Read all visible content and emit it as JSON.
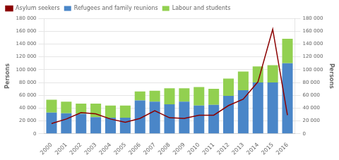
{
  "chart_data": {
    "type": "bar",
    "categories": [
      "2000",
      "2001",
      "2002",
      "2003",
      "2004",
      "2005",
      "2006",
      "2007",
      "2008",
      "2009",
      "2010",
      "2011",
      "2012",
      "2013",
      "2014",
      "2015",
      "2016"
    ],
    "series": [
      {
        "name": "Refugees and family reunions",
        "color": "#4a86c8",
        "values": [
          33000,
          32000,
          31000,
          26000,
          25000,
          25000,
          52000,
          50000,
          46000,
          50000,
          44000,
          45000,
          59000,
          68000,
          80000,
          80000,
          110000
        ]
      },
      {
        "name": "Labour and students",
        "color": "#92d050",
        "values": [
          20000,
          18000,
          16000,
          21000,
          19000,
          19000,
          14000,
          17000,
          25000,
          21000,
          29000,
          25000,
          27000,
          29000,
          25000,
          27000,
          38000
        ]
      },
      {
        "name": "Asylum seekers",
        "color": "#8b0000",
        "type": "line",
        "axis": "y2",
        "values": [
          16000,
          23000,
          33000,
          31000,
          23000,
          18000,
          24000,
          36000,
          25000,
          24000,
          29000,
          29000,
          44000,
          54000,
          81000,
          163000,
          29000
        ]
      }
    ],
    "stacked": true,
    "ylabel": "Persons",
    "y2label": "Persons",
    "ylim": [
      0,
      180000
    ],
    "yticks": [
      0,
      {
        "value": 20000,
        "label": "20 000"
      },
      {
        "value": 40000,
        "label": "40 000"
      },
      {
        "value": 60000,
        "label": "60 000"
      },
      {
        "value": 80000,
        "label": "80 000"
      },
      {
        "value": 100000,
        "label": "100 000"
      },
      {
        "value": 120000,
        "label": "120 000"
      },
      {
        "value": 140000,
        "label": "140 000"
      },
      {
        "value": 160000,
        "label": "160 000"
      },
      {
        "value": 180000,
        "label": "180 000"
      }
    ],
    "y2lim": [
      0,
      180000
    ],
    "y2ticks": [
      0,
      {
        "value": 20000,
        "label": "20 000"
      },
      {
        "value": 40000,
        "label": "40 000"
      },
      {
        "value": 60000,
        "label": "60 000"
      },
      {
        "value": 80000,
        "label": "80 000"
      },
      {
        "value": 100000,
        "label": "100 000"
      },
      {
        "value": 120000,
        "label": "120 000"
      },
      {
        "value": 140000,
        "label": "140 000"
      },
      {
        "value": 160000,
        "label": "160 000"
      },
      {
        "value": 180000,
        "label": "180 000"
      }
    ],
    "grid": true,
    "legend": "upper left"
  }
}
